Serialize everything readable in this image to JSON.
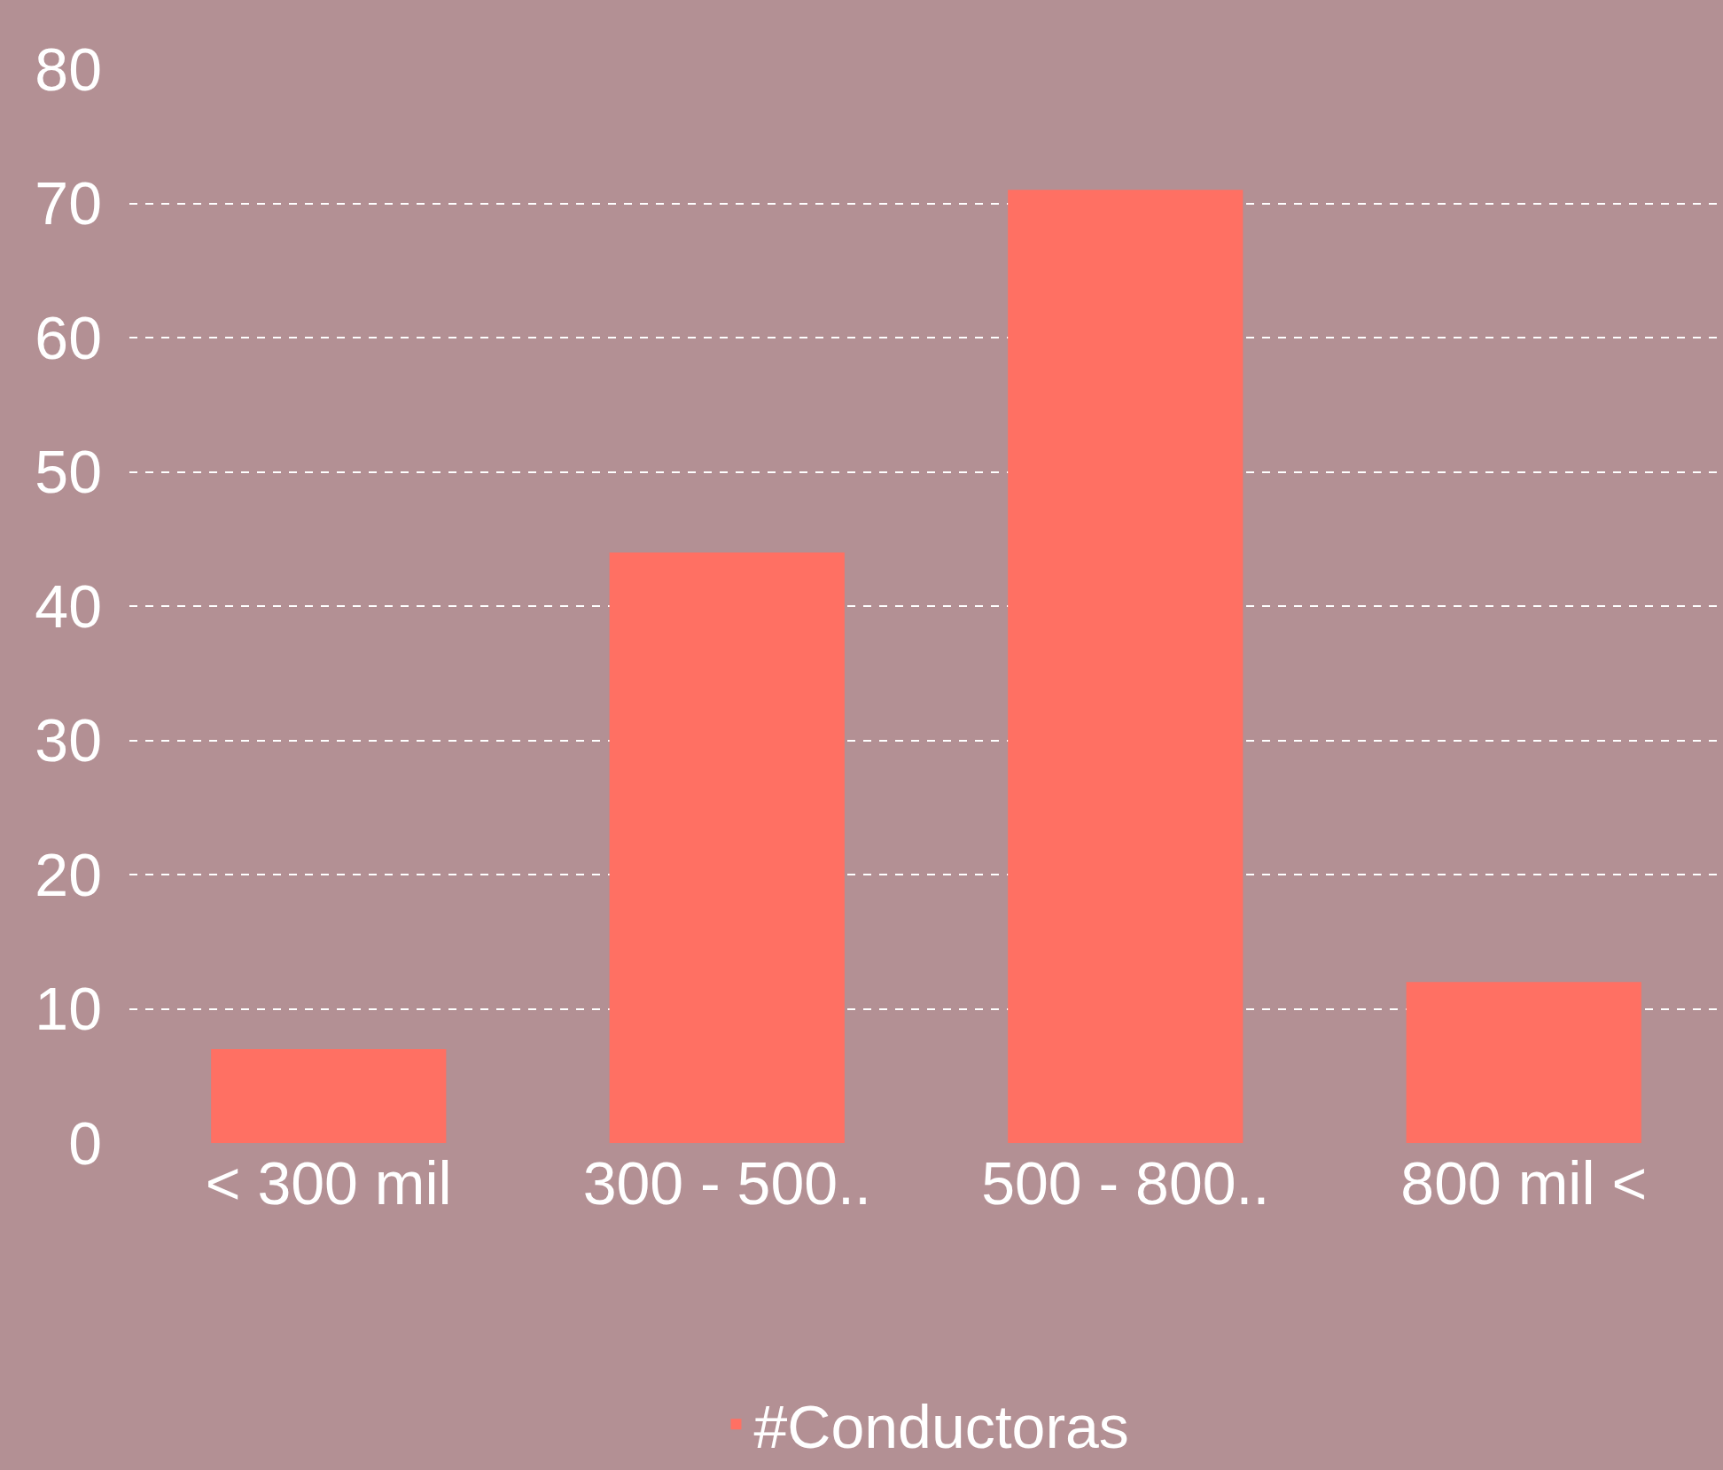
{
  "chart_data": {
    "type": "bar",
    "categories": [
      "< 300 mil",
      "300 - 500..",
      "500 - 800..",
      "800 mil <"
    ],
    "series": [
      {
        "name": "#Conductoras",
        "color": "#ff7063",
        "values": [
          7,
          44,
          71,
          12
        ]
      }
    ],
    "ylim": [
      0,
      80
    ],
    "yticks": [
      0,
      10,
      20,
      30,
      40,
      50,
      60,
      70,
      80
    ],
    "grid": "y",
    "legend": "bottom"
  }
}
